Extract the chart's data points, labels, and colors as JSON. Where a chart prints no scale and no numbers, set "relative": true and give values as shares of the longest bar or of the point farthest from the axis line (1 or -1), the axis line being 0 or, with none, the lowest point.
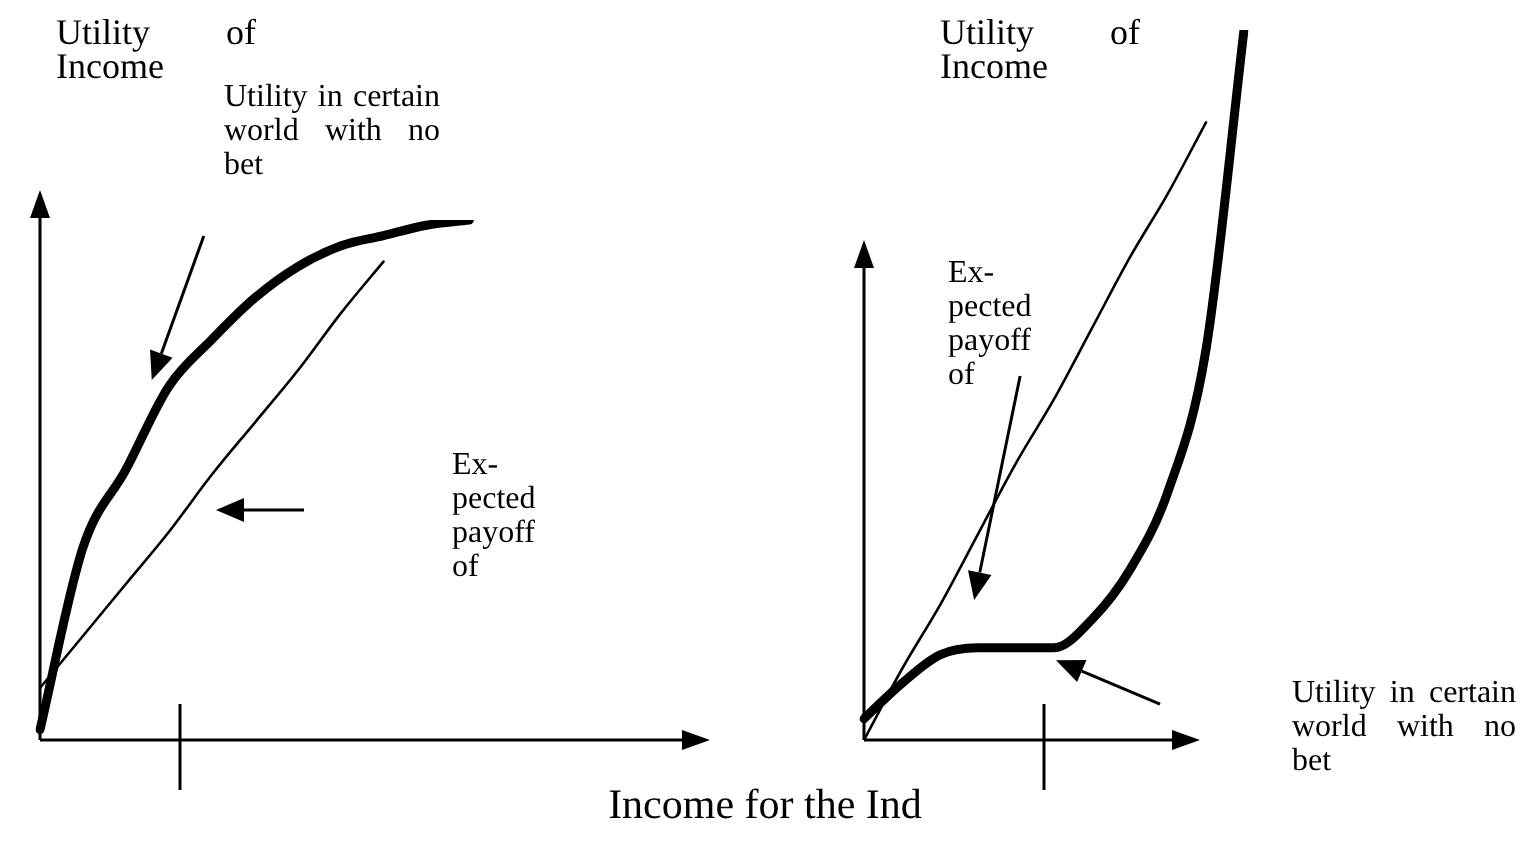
{
  "chart_data": [
    {
      "type": "line",
      "relative": true,
      "ylabel": "Utility of Income",
      "xlabel": "Income for the Ind",
      "categories": [
        null,
        null,
        null,
        null,
        null,
        null,
        null,
        null,
        null,
        null,
        null,
        null,
        null,
        null,
        null,
        null
      ],
      "series": [
        {
          "color": "#000000",
          "values": [
            0.02,
            0.37,
            0.52,
            0.68,
            0.77,
            0.85,
            0.91,
            0.95,
            0.97,
            0.99,
            1,
            null,
            null,
            null,
            null,
            null
          ]
        },
        {
          "color": "#000000",
          "values": [
            0.1,
            0.2,
            0.3,
            0.4,
            0.51,
            0.61,
            0.71,
            0.82,
            0.92,
            null,
            null,
            null,
            null,
            null,
            null,
            null
          ]
        }
      ],
      "annotations": [
        "Utility in certain world with no bet",
        "Ex-pected payoff of"
      ],
      "legend": false
    },
    {
      "type": "line",
      "relative": true,
      "ylabel": "Utility of Income",
      "categories": [
        null,
        null,
        null,
        null,
        null,
        null,
        null,
        null,
        null,
        null,
        null
      ],
      "series": [
        {
          "color": "#000000",
          "values": [
            0.03,
            0.08,
            0.12,
            0.13,
            0.13,
            0.13,
            0.17,
            0.24,
            0.35,
            0.55,
            1
          ]
        },
        {
          "color": "#000000",
          "values": [
            0,
            0.1,
            0.19,
            0.29,
            0.39,
            0.48,
            0.58,
            0.68,
            0.77,
            0.87,
            null
          ]
        }
      ],
      "annotations": [
        "Ex-pected payoff of",
        "Utility in certain world with no bet"
      ],
      "legend": false
    }
  ]
}
